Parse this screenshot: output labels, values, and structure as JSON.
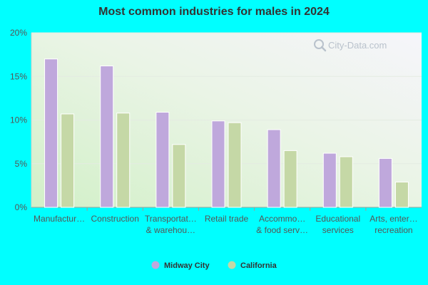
{
  "chart_data": {
    "type": "bar",
    "title": "Most common industries for males in 2024",
    "categories": [
      [
        "Manufactur…"
      ],
      [
        "Construction"
      ],
      [
        "Transportat…",
        "& warehou…"
      ],
      [
        "Retail trade"
      ],
      [
        "Accommo…",
        "& food serv…"
      ],
      [
        "Educational",
        "services"
      ],
      [
        "Arts, enter…",
        "recreation"
      ]
    ],
    "series": [
      {
        "name": "Midway City",
        "color": "#bfa8dc",
        "values": [
          17.0,
          16.2,
          10.9,
          9.9,
          8.9,
          6.2,
          5.6
        ]
      },
      {
        "name": "California",
        "color": "#c5d8a6",
        "values": [
          10.7,
          10.8,
          7.2,
          9.7,
          6.5,
          5.8,
          2.9
        ]
      }
    ],
    "ylim": [
      0,
      20
    ],
    "yticks": [
      "0%",
      "5%",
      "10%",
      "15%",
      "20%"
    ],
    "xlabel": "",
    "ylabel": "",
    "grid": true,
    "legend": "bottom-center"
  },
  "watermark": "City-Data.com"
}
